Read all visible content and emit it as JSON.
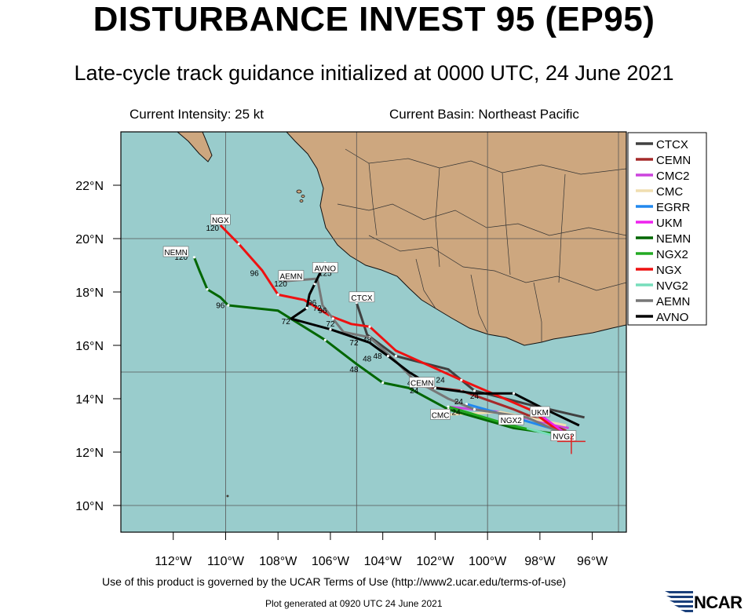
{
  "title": "DISTURBANCE INVEST 95 (EP95)",
  "subtitle": "Late-cycle track guidance initialized at 0000 UTC, 24 June 2021",
  "current_intensity": "Current Intensity: 25 kt",
  "current_basin": "Current Basin: Northeast Pacific",
  "footer": "Use of this product is governed by the UCAR Terms of Use (http://www2.ucar.edu/terms-of-use)",
  "plot_generated": "Plot generated at 0920 UTC   24 June 2021",
  "logo_text": "NCAR",
  "colors": {
    "ocean": "#99cccc",
    "land": "#cda77f",
    "border": "#000000"
  },
  "chart_data": {
    "type": "line",
    "xlim": [
      -114,
      -94.7
    ],
    "ylim": [
      9,
      24
    ],
    "x_ticks": [
      {
        "v": -112,
        "label": "112°W"
      },
      {
        "v": -110,
        "label": "110°W"
      },
      {
        "v": -108,
        "label": "108°W"
      },
      {
        "v": -106,
        "label": "106°W"
      },
      {
        "v": -104,
        "label": "104°W"
      },
      {
        "v": -102,
        "label": "102°W"
      },
      {
        "v": -100,
        "label": "100°W"
      },
      {
        "v": -98,
        "label": "98°W"
      },
      {
        "v": -96,
        "label": "96°W"
      }
    ],
    "y_ticks": [
      {
        "v": 10,
        "label": "10°N"
      },
      {
        "v": 12,
        "label": "12°N"
      },
      {
        "v": 14,
        "label": "14°N"
      },
      {
        "v": 16,
        "label": "16°N"
      },
      {
        "v": 18,
        "label": "18°N"
      },
      {
        "v": 20,
        "label": "20°N"
      },
      {
        "v": 22,
        "label": "22°N"
      }
    ],
    "grid_lon": [
      -110,
      -105,
      -100,
      -95
    ],
    "grid_lat": [
      10,
      15,
      20
    ],
    "current_position": {
      "lon": -96.8,
      "lat": 12.4
    },
    "series": [
      {
        "name": "CTCX",
        "color": "#404040",
        "labels": [
          "CTCX"
        ],
        "label_at": [
          -104.8,
          17.8
        ],
        "points": [
          [
            -96.3,
            13.3
          ],
          [
            -98.5,
            13.8
          ],
          [
            -100.5,
            14.3
          ],
          [
            -101.5,
            15.1
          ],
          [
            -103.5,
            15.6
          ],
          [
            -104.6,
            16.4
          ],
          [
            -105.0,
            17.6
          ]
        ]
      },
      {
        "name": "CEMN",
        "color": "#a52a2a",
        "labels": [
          "CEMN"
        ],
        "label_at": [
          -102.5,
          14.6
        ],
        "points": [
          [
            -97.0,
            12.8
          ],
          [
            -99.0,
            13.6
          ],
          [
            -101.0,
            14.3
          ],
          [
            -102.8,
            14.5
          ]
        ]
      },
      {
        "name": "CMC2",
        "color": "#cc44dd",
        "points": [
          [
            -96.9,
            12.9
          ],
          [
            -99.5,
            13.5
          ],
          [
            -101.5,
            13.7
          ]
        ]
      },
      {
        "name": "CMC",
        "color": "#f0deb0",
        "labels": [
          "CMC"
        ],
        "label_at": [
          -101.8,
          13.4
        ],
        "points": [
          [
            -97.0,
            13.0
          ],
          [
            -99.5,
            13.5
          ],
          [
            -101.6,
            13.4
          ]
        ]
      },
      {
        "name": "EGRR",
        "color": "#2288ee",
        "points": [
          [
            -96.9,
            12.7
          ],
          [
            -99.0,
            13.3
          ],
          [
            -100.8,
            13.8
          ]
        ]
      },
      {
        "name": "UKM",
        "color": "#ee22ee",
        "labels": [
          "UKM"
        ],
        "label_at": [
          -98.0,
          13.5
        ],
        "points": [
          [
            -96.9,
            12.6
          ],
          [
            -98.0,
            13.4
          ]
        ]
      },
      {
        "name": "NEMN",
        "color": "#006600",
        "labels": [
          "NEMN"
        ],
        "label_at": [
          -111.9,
          19.5
        ],
        "points": [
          [
            -96.8,
            12.6
          ],
          [
            -99.0,
            12.9
          ],
          [
            -101.5,
            13.6
          ],
          [
            -103.0,
            14.4
          ],
          [
            -104.0,
            14.6
          ],
          [
            -105.0,
            15.3
          ],
          [
            -106.2,
            16.2
          ],
          [
            -108.0,
            17.3
          ],
          [
            -109.9,
            17.5
          ],
          [
            -110.2,
            17.8
          ],
          [
            -110.7,
            18.1
          ],
          [
            -111.0,
            18.8
          ],
          [
            -111.2,
            19.3
          ]
        ]
      },
      {
        "name": "NGX2",
        "color": "#22aa22",
        "labels": [
          "NGX2"
        ],
        "label_at": [
          -99.1,
          13.2
        ],
        "points": [
          [
            -96.8,
            12.5
          ],
          [
            -99.1,
            13.0
          ],
          [
            -101.5,
            13.7
          ]
        ]
      },
      {
        "name": "NGX",
        "color": "#ee1111",
        "labels": [
          "NGX"
        ],
        "label_at": [
          -110.2,
          20.7
        ],
        "points": [
          [
            -96.9,
            12.5
          ],
          [
            -98.4,
            13.6
          ],
          [
            -101.0,
            14.7
          ],
          [
            -103.5,
            15.8
          ],
          [
            -104.5,
            16.7
          ],
          [
            -105.2,
            16.8
          ],
          [
            -106.0,
            17.1
          ],
          [
            -107.0,
            17.7
          ],
          [
            -108.0,
            17.9
          ],
          [
            -108.6,
            18.8
          ],
          [
            -109.5,
            19.8
          ],
          [
            -110.2,
            20.5
          ]
        ]
      },
      {
        "name": "NVG2",
        "color": "#77ddbb",
        "labels": [
          "NVG2"
        ],
        "label_at": [
          -97.1,
          12.6
        ],
        "points": [
          [
            -96.7,
            12.4
          ],
          [
            -98.5,
            12.9
          ]
        ]
      },
      {
        "name": "AEMN",
        "color": "#777777",
        "labels": [
          "AEMN"
        ],
        "label_at": [
          -107.5,
          18.6
        ],
        "points": [
          [
            -96.9,
            12.6
          ],
          [
            -98.5,
            13.3
          ],
          [
            -100.5,
            13.6
          ],
          [
            -101.5,
            14.0
          ],
          [
            -102.8,
            14.7
          ],
          [
            -103.5,
            15.4
          ],
          [
            -104.5,
            16.3
          ],
          [
            -105.5,
            16.5
          ],
          [
            -105.9,
            17.0
          ],
          [
            -106.3,
            17.5
          ],
          [
            -106.5,
            18.5
          ],
          [
            -107.8,
            18.4
          ]
        ]
      },
      {
        "name": "AVNO",
        "color": "#000000",
        "labels": [
          "AVNO"
        ],
        "label_at": [
          -106.2,
          18.9
        ],
        "points": [
          [
            -96.5,
            13.0
          ],
          [
            -98.0,
            13.7
          ],
          [
            -99.0,
            14.2
          ],
          [
            -100.5,
            14.2
          ],
          [
            -102.0,
            14.4
          ],
          [
            -103.0,
            15.0
          ],
          [
            -103.8,
            15.6
          ],
          [
            -104.5,
            16.1
          ],
          [
            -106.0,
            16.6
          ],
          [
            -107.5,
            17.0
          ],
          [
            -106.9,
            17.4
          ],
          [
            -106.8,
            17.9
          ],
          [
            -106.6,
            18.3
          ],
          [
            -106.4,
            18.7
          ],
          [
            -106.2,
            19.1
          ]
        ]
      }
    ],
    "hour_labels": [
      {
        "text": "120",
        "lon": -110.5,
        "lat": 20.3
      },
      {
        "text": "96",
        "lon": -108.9,
        "lat": 18.6
      },
      {
        "text": "120",
        "lon": -111.7,
        "lat": 19.2
      },
      {
        "text": "96",
        "lon": -110.2,
        "lat": 17.4
      },
      {
        "text": "120",
        "lon": -107.9,
        "lat": 18.2
      },
      {
        "text": "125",
        "lon": -106.2,
        "lat": 18.6
      },
      {
        "text": "96",
        "lon": -106.7,
        "lat": 17.5
      },
      {
        "text": "72",
        "lon": -106.5,
        "lat": 17.3
      },
      {
        "text": "96",
        "lon": -106.3,
        "lat": 17.2
      },
      {
        "text": "72",
        "lon": -107.7,
        "lat": 16.8
      },
      {
        "text": "72",
        "lon": -106.0,
        "lat": 16.7
      },
      {
        "text": "72",
        "lon": -105.1,
        "lat": 16.0
      },
      {
        "text": "48",
        "lon": -104.6,
        "lat": 16.1
      },
      {
        "text": "48",
        "lon": -104.2,
        "lat": 15.5
      },
      {
        "text": "48",
        "lon": -104.6,
        "lat": 15.4
      },
      {
        "text": "48",
        "lon": -105.1,
        "lat": 15.0
      },
      {
        "text": "48",
        "lon": -102.9,
        "lat": 14.5
      },
      {
        "text": "24",
        "lon": -101.8,
        "lat": 14.6
      },
      {
        "text": "24",
        "lon": -102.8,
        "lat": 14.2
      },
      {
        "text": "24",
        "lon": -100.5,
        "lat": 14.0
      },
      {
        "text": "24",
        "lon": -101.1,
        "lat": 13.8
      },
      {
        "text": "24",
        "lon": -101.2,
        "lat": 13.4
      }
    ],
    "legend_position": "right"
  }
}
